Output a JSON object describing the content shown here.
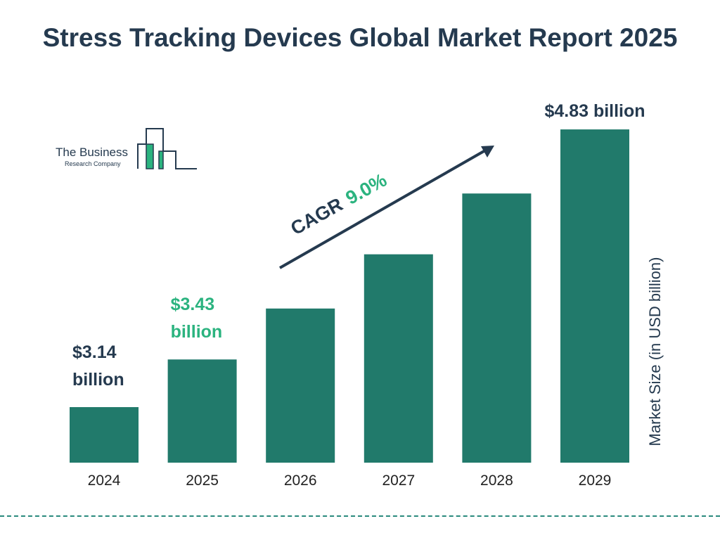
{
  "title": "Stress Tracking Devices Global Market Report 2025",
  "logo": {
    "line1": "The Business",
    "line2": "Research Company"
  },
  "chart_data": {
    "type": "bar",
    "categories": [
      "2024",
      "2025",
      "2026",
      "2027",
      "2028",
      "2029"
    ],
    "values": [
      3.14,
      3.43,
      3.74,
      4.07,
      4.44,
      4.83
    ],
    "data_labels": [
      {
        "category": "2024",
        "text": "$3.14 billion"
      },
      {
        "category": "2025",
        "text": "$3.43 billion"
      },
      {
        "category": "2029",
        "text": "$4.83 billion"
      }
    ],
    "annotation": {
      "label": "CAGR",
      "value": "9.0%"
    },
    "ylabel": "Market Size (in USD billion)",
    "xlabel": "",
    "grid": false,
    "colors": {
      "bar": "#217a6b",
      "text": "#253a4f",
      "highlight": "#2bb37f"
    }
  }
}
